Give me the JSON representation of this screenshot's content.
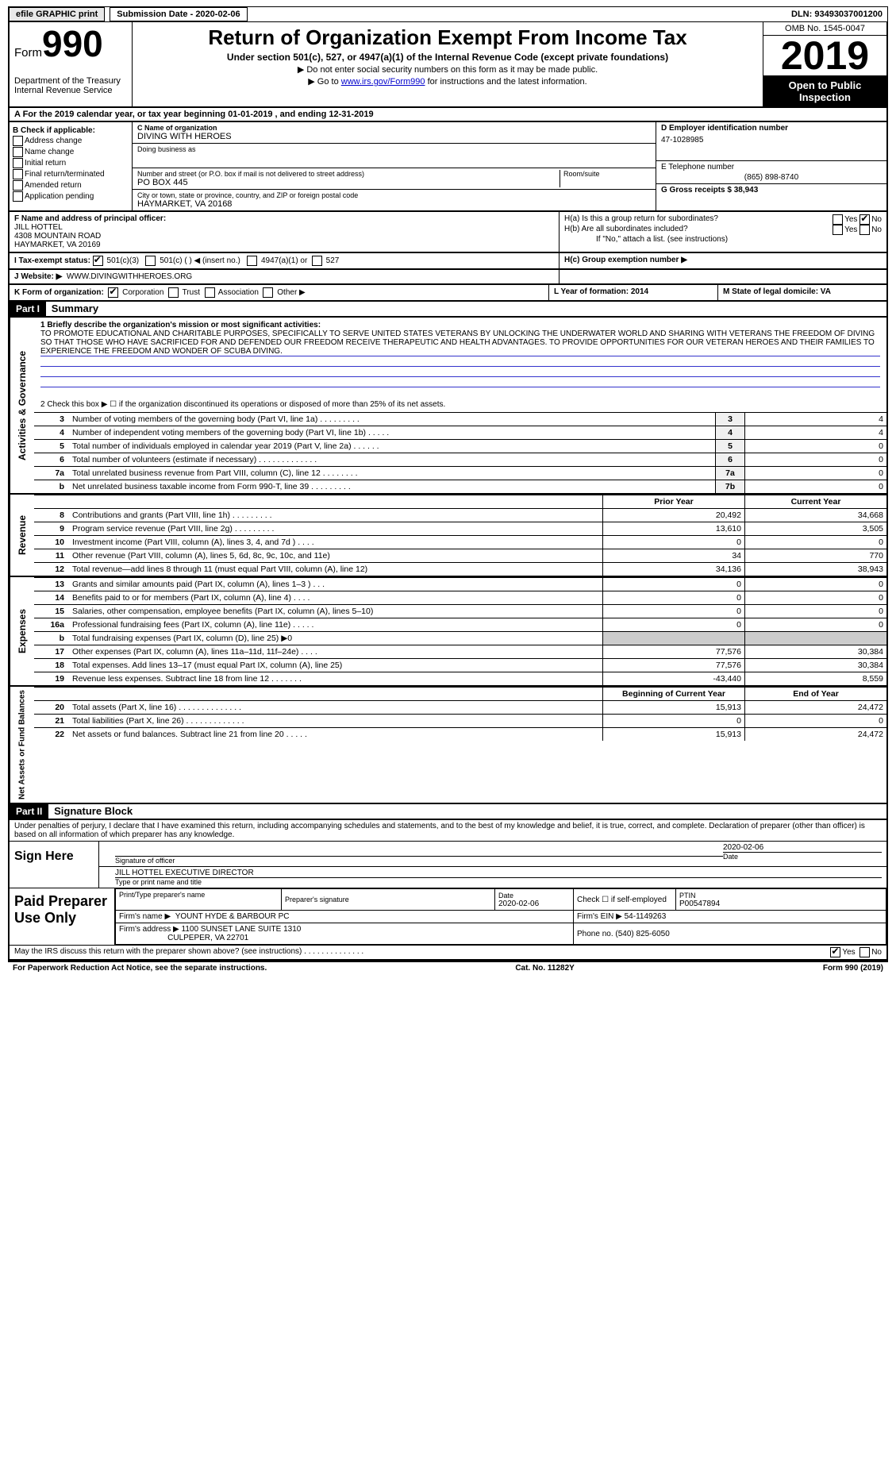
{
  "topbar": {
    "efile": "efile GRAPHIC print",
    "submission": "Submission Date - 2020-02-06",
    "dln": "DLN: 93493037001200"
  },
  "header": {
    "form_word": "Form",
    "form_num": "990",
    "dept": "Department of the Treasury\nInternal Revenue Service",
    "title": "Return of Organization Exempt From Income Tax",
    "sub": "Under section 501(c), 527, or 4947(a)(1) of the Internal Revenue Code (except private foundations)",
    "sub2": "▶ Do not enter social security numbers on this form as it may be made public.",
    "sub3_pre": "▶ Go to ",
    "sub3_link": "www.irs.gov/Form990",
    "sub3_post": " for instructions and the latest information.",
    "omb": "OMB No. 1545-0047",
    "year": "2019",
    "open": "Open to Public Inspection"
  },
  "row_a": {
    "text": "A For the 2019 calendar year, or tax year beginning 01-01-2019   , and ending 12-31-2019"
  },
  "section_b": {
    "check_label": "B Check if applicable:",
    "opts": [
      "Address change",
      "Name change",
      "Initial return",
      "Final return/terminated",
      "Amended return",
      "Application pending"
    ],
    "c_label": "C Name of organization",
    "c_name": "DIVING WITH HEROES",
    "dba_label": "Doing business as",
    "addr_label": "Number and street (or P.O. box if mail is not delivered to street address)",
    "addr": "PO BOX 445",
    "room_label": "Room/suite",
    "city_label": "City or town, state or province, country, and ZIP or foreign postal code",
    "city": "HAYMARKET, VA  20168",
    "d_label": "D Employer identification number",
    "d_val": "47-1028985",
    "e_label": "E Telephone number",
    "e_val": "(865) 898-8740",
    "g_label": "G Gross receipts $ 38,943"
  },
  "section_fh": {
    "f_label": "F  Name and address of principal officer:",
    "f_name": "JILL HOTTEL",
    "f_addr1": "4308 MOUNTAIN ROAD",
    "f_addr2": "HAYMARKET, VA  20169",
    "ha": "H(a)  Is this a group return for subordinates?",
    "hb": "H(b)  Are all subordinates included?",
    "hb_note": "If \"No,\" attach a list. (see instructions)",
    "hc": "H(c)  Group exemption number ▶",
    "yes": "Yes",
    "no": "No"
  },
  "tax_status": {
    "label": "I  Tax-exempt status:",
    "o1": "501(c)(3)",
    "o2": "501(c) (  ) ◀ (insert no.)",
    "o3": "4947(a)(1) or",
    "o4": "527"
  },
  "website": {
    "label": "J  Website: ▶",
    "val": "WWW.DIVINGWITHHEROES.ORG"
  },
  "row_kl": {
    "k_label": "K Form of organization:",
    "k_opts": [
      "Corporation",
      "Trust",
      "Association",
      "Other ▶"
    ],
    "l_label": "L Year of formation: 2014",
    "m_label": "M State of legal domicile: VA"
  },
  "part1": {
    "tag": "Part I",
    "title": "Summary",
    "line1_label": "1  Briefly describe the organization's mission or most significant activities:",
    "mission": "TO PROMOTE EDUCATIONAL AND CHARITABLE PURPOSES, SPECIFICALLY TO SERVE UNITED STATES VETERANS BY UNLOCKING THE UNDERWATER WORLD AND SHARING WITH VETERANS THE FREEDOM OF DIVING SO THAT THOSE WHO HAVE SACRIFICED FOR AND DEFENDED OUR FREEDOM RECEIVE THERAPEUTIC AND HEALTH ADVANTAGES. TO PROVIDE OPPORTUNITIES FOR OUR VETERAN HEROES AND THEIR FAMILIES TO EXPERIENCE THE FREEDOM AND WONDER OF SCUBA DIVING.",
    "line2": "2   Check this box ▶ ☐  if the organization discontinued its operations or disposed of more than 25% of its net assets.",
    "gov_vert": "Activities & Governance",
    "rev_vert": "Revenue",
    "exp_vert": "Expenses",
    "net_vert": "Net Assets or Fund Balances",
    "rows_gov": [
      {
        "n": "3",
        "t": "Number of voting members of the governing body (Part VI, line 1a)  .  .  .  .  .  .  .  .  .",
        "k": "3",
        "v": "4"
      },
      {
        "n": "4",
        "t": "Number of independent voting members of the governing body (Part VI, line 1b)  .  .  .  .  .",
        "k": "4",
        "v": "4"
      },
      {
        "n": "5",
        "t": "Total number of individuals employed in calendar year 2019 (Part V, line 2a)  .  .  .  .  .  .",
        "k": "5",
        "v": "0"
      },
      {
        "n": "6",
        "t": "Total number of volunteers (estimate if necessary)  .  .  .  .  .  .  .  .  .  .  .  .  .",
        "k": "6",
        "v": "0"
      },
      {
        "n": "7a",
        "t": "Total unrelated business revenue from Part VIII, column (C), line 12  .  .  .  .  .  .  .  .",
        "k": "7a",
        "v": "0"
      },
      {
        "n": "b",
        "t": "Net unrelated business taxable income from Form 990-T, line 39  .  .  .  .  .  .  .  .  .",
        "k": "7b",
        "v": "0"
      }
    ],
    "head_prior": "Prior Year",
    "head_curr": "Current Year",
    "rows_rev": [
      {
        "n": "8",
        "t": "Contributions and grants (Part VIII, line 1h)  .  .  .  .  .  .  .  .  .",
        "p": "20,492",
        "c": "34,668"
      },
      {
        "n": "9",
        "t": "Program service revenue (Part VIII, line 2g)  .  .  .  .  .  .  .  .  .",
        "p": "13,610",
        "c": "3,505"
      },
      {
        "n": "10",
        "t": "Investment income (Part VIII, column (A), lines 3, 4, and 7d )  .  .  .  .",
        "p": "0",
        "c": "0"
      },
      {
        "n": "11",
        "t": "Other revenue (Part VIII, column (A), lines 5, 6d, 8c, 9c, 10c, and 11e)",
        "p": "34",
        "c": "770"
      },
      {
        "n": "12",
        "t": "Total revenue—add lines 8 through 11 (must equal Part VIII, column (A), line 12)",
        "p": "34,136",
        "c": "38,943"
      }
    ],
    "rows_exp": [
      {
        "n": "13",
        "t": "Grants and similar amounts paid (Part IX, column (A), lines 1–3 )  .  .  .",
        "p": "0",
        "c": "0"
      },
      {
        "n": "14",
        "t": "Benefits paid to or for members (Part IX, column (A), line 4)  .  .  .  .",
        "p": "0",
        "c": "0"
      },
      {
        "n": "15",
        "t": "Salaries, other compensation, employee benefits (Part IX, column (A), lines 5–10)",
        "p": "0",
        "c": "0"
      },
      {
        "n": "16a",
        "t": "Professional fundraising fees (Part IX, column (A), line 11e)  .  .  .  .  .",
        "p": "0",
        "c": "0"
      },
      {
        "n": "b",
        "t": "Total fundraising expenses (Part IX, column (D), line 25) ▶0",
        "p": "",
        "c": ""
      },
      {
        "n": "17",
        "t": "Other expenses (Part IX, column (A), lines 11a–11d, 11f–24e)  .  .  .  .",
        "p": "77,576",
        "c": "30,384"
      },
      {
        "n": "18",
        "t": "Total expenses. Add lines 13–17 (must equal Part IX, column (A), line 25)",
        "p": "77,576",
        "c": "30,384"
      },
      {
        "n": "19",
        "t": "Revenue less expenses. Subtract line 18 from line 12  .  .  .  .  .  .  .",
        "p": "-43,440",
        "c": "8,559"
      }
    ],
    "head_begin": "Beginning of Current Year",
    "head_end": "End of Year",
    "rows_net": [
      {
        "n": "20",
        "t": "Total assets (Part X, line 16)  .  .  .  .  .  .  .  .  .  .  .  .  .  .",
        "p": "15,913",
        "c": "24,472"
      },
      {
        "n": "21",
        "t": "Total liabilities (Part X, line 26)  .  .  .  .  .  .  .  .  .  .  .  .  .",
        "p": "0",
        "c": "0"
      },
      {
        "n": "22",
        "t": "Net assets or fund balances. Subtract line 21 from line 20  .  .  .  .  .",
        "p": "15,913",
        "c": "24,472"
      }
    ]
  },
  "part2": {
    "tag": "Part II",
    "title": "Signature Block",
    "perjury": "Under penalties of perjury, I declare that I have examined this return, including accompanying schedules and statements, and to the best of my knowledge and belief, it is true, correct, and complete. Declaration of preparer (other than officer) is based on all information of which preparer has any knowledge.",
    "sign_here": "Sign Here",
    "sig_of_officer": "Signature of officer",
    "sig_date": "2020-02-06",
    "sig_date_label": "Date",
    "sig_name": "JILL HOTTEL EXECUTIVE DIRECTOR",
    "sig_name_label": "Type or print name and title",
    "paid": "Paid Preparer Use Only",
    "prep_name_label": "Print/Type preparer's name",
    "prep_sig_label": "Preparer's signature",
    "prep_date_label": "Date",
    "prep_date": "2020-02-06",
    "self_emp": "Check ☐ if self-employed",
    "ptin_label": "PTIN",
    "ptin": "P00547894",
    "firm_name_label": "Firm's name    ▶",
    "firm_name": "YOUNT HYDE & BARBOUR PC",
    "firm_ein_label": "Firm's EIN ▶",
    "firm_ein": "54-1149263",
    "firm_addr_label": "Firm's address ▶",
    "firm_addr1": "1100 SUNSET LANE SUITE 1310",
    "firm_addr2": "CULPEPER, VA  22701",
    "phone_label": "Phone no.",
    "phone": "(540) 825-6050",
    "may_irs": "May the IRS discuss this return with the preparer shown above? (see instructions)  .  .  .  .  .  .  .  .  .  .  .  .  .  .",
    "yes": "Yes",
    "no": "No"
  },
  "footer": {
    "left": "For Paperwork Reduction Act Notice, see the separate instructions.",
    "mid": "Cat. No. 11282Y",
    "right": "Form 990 (2019)"
  },
  "colors": {
    "link": "#0000cc",
    "rule": "#3333cc"
  }
}
